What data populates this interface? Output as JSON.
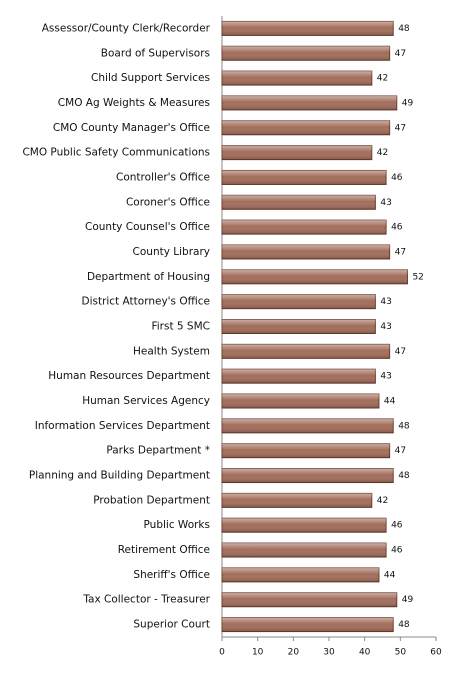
{
  "chart_data": {
    "type": "bar",
    "orientation": "horizontal",
    "categories": [
      "Assessor/County Clerk/Recorder",
      "Board of Supervisors",
      "Child Support Services",
      "CMO Ag Weights & Measures",
      "CMO County Manager's Office",
      "CMO Public Safety Communications",
      "Controller's Office",
      "Coroner's Office",
      "County Counsel's Office",
      "County Library",
      "Department of Housing",
      "District Attorney's Office",
      "First 5 SMC",
      "Health System",
      "Human Resources Department",
      "Human Services Agency",
      "Information Services Department",
      "Parks Department *",
      "Planning and Building Department",
      "Probation Department",
      "Public Works",
      "Retirement Office",
      "Sheriff's Office",
      "Tax Collector - Treasurer",
      "Superior Court"
    ],
    "values": [
      48,
      47,
      42,
      49,
      47,
      42,
      46,
      43,
      46,
      47,
      52,
      43,
      43,
      47,
      43,
      44,
      48,
      47,
      48,
      42,
      46,
      46,
      44,
      49,
      48
    ],
    "color": "#a36e5c",
    "xlim": [
      0,
      60
    ],
    "xticks": [
      0,
      10,
      20,
      30,
      40,
      50,
      60
    ],
    "grid": false
  }
}
